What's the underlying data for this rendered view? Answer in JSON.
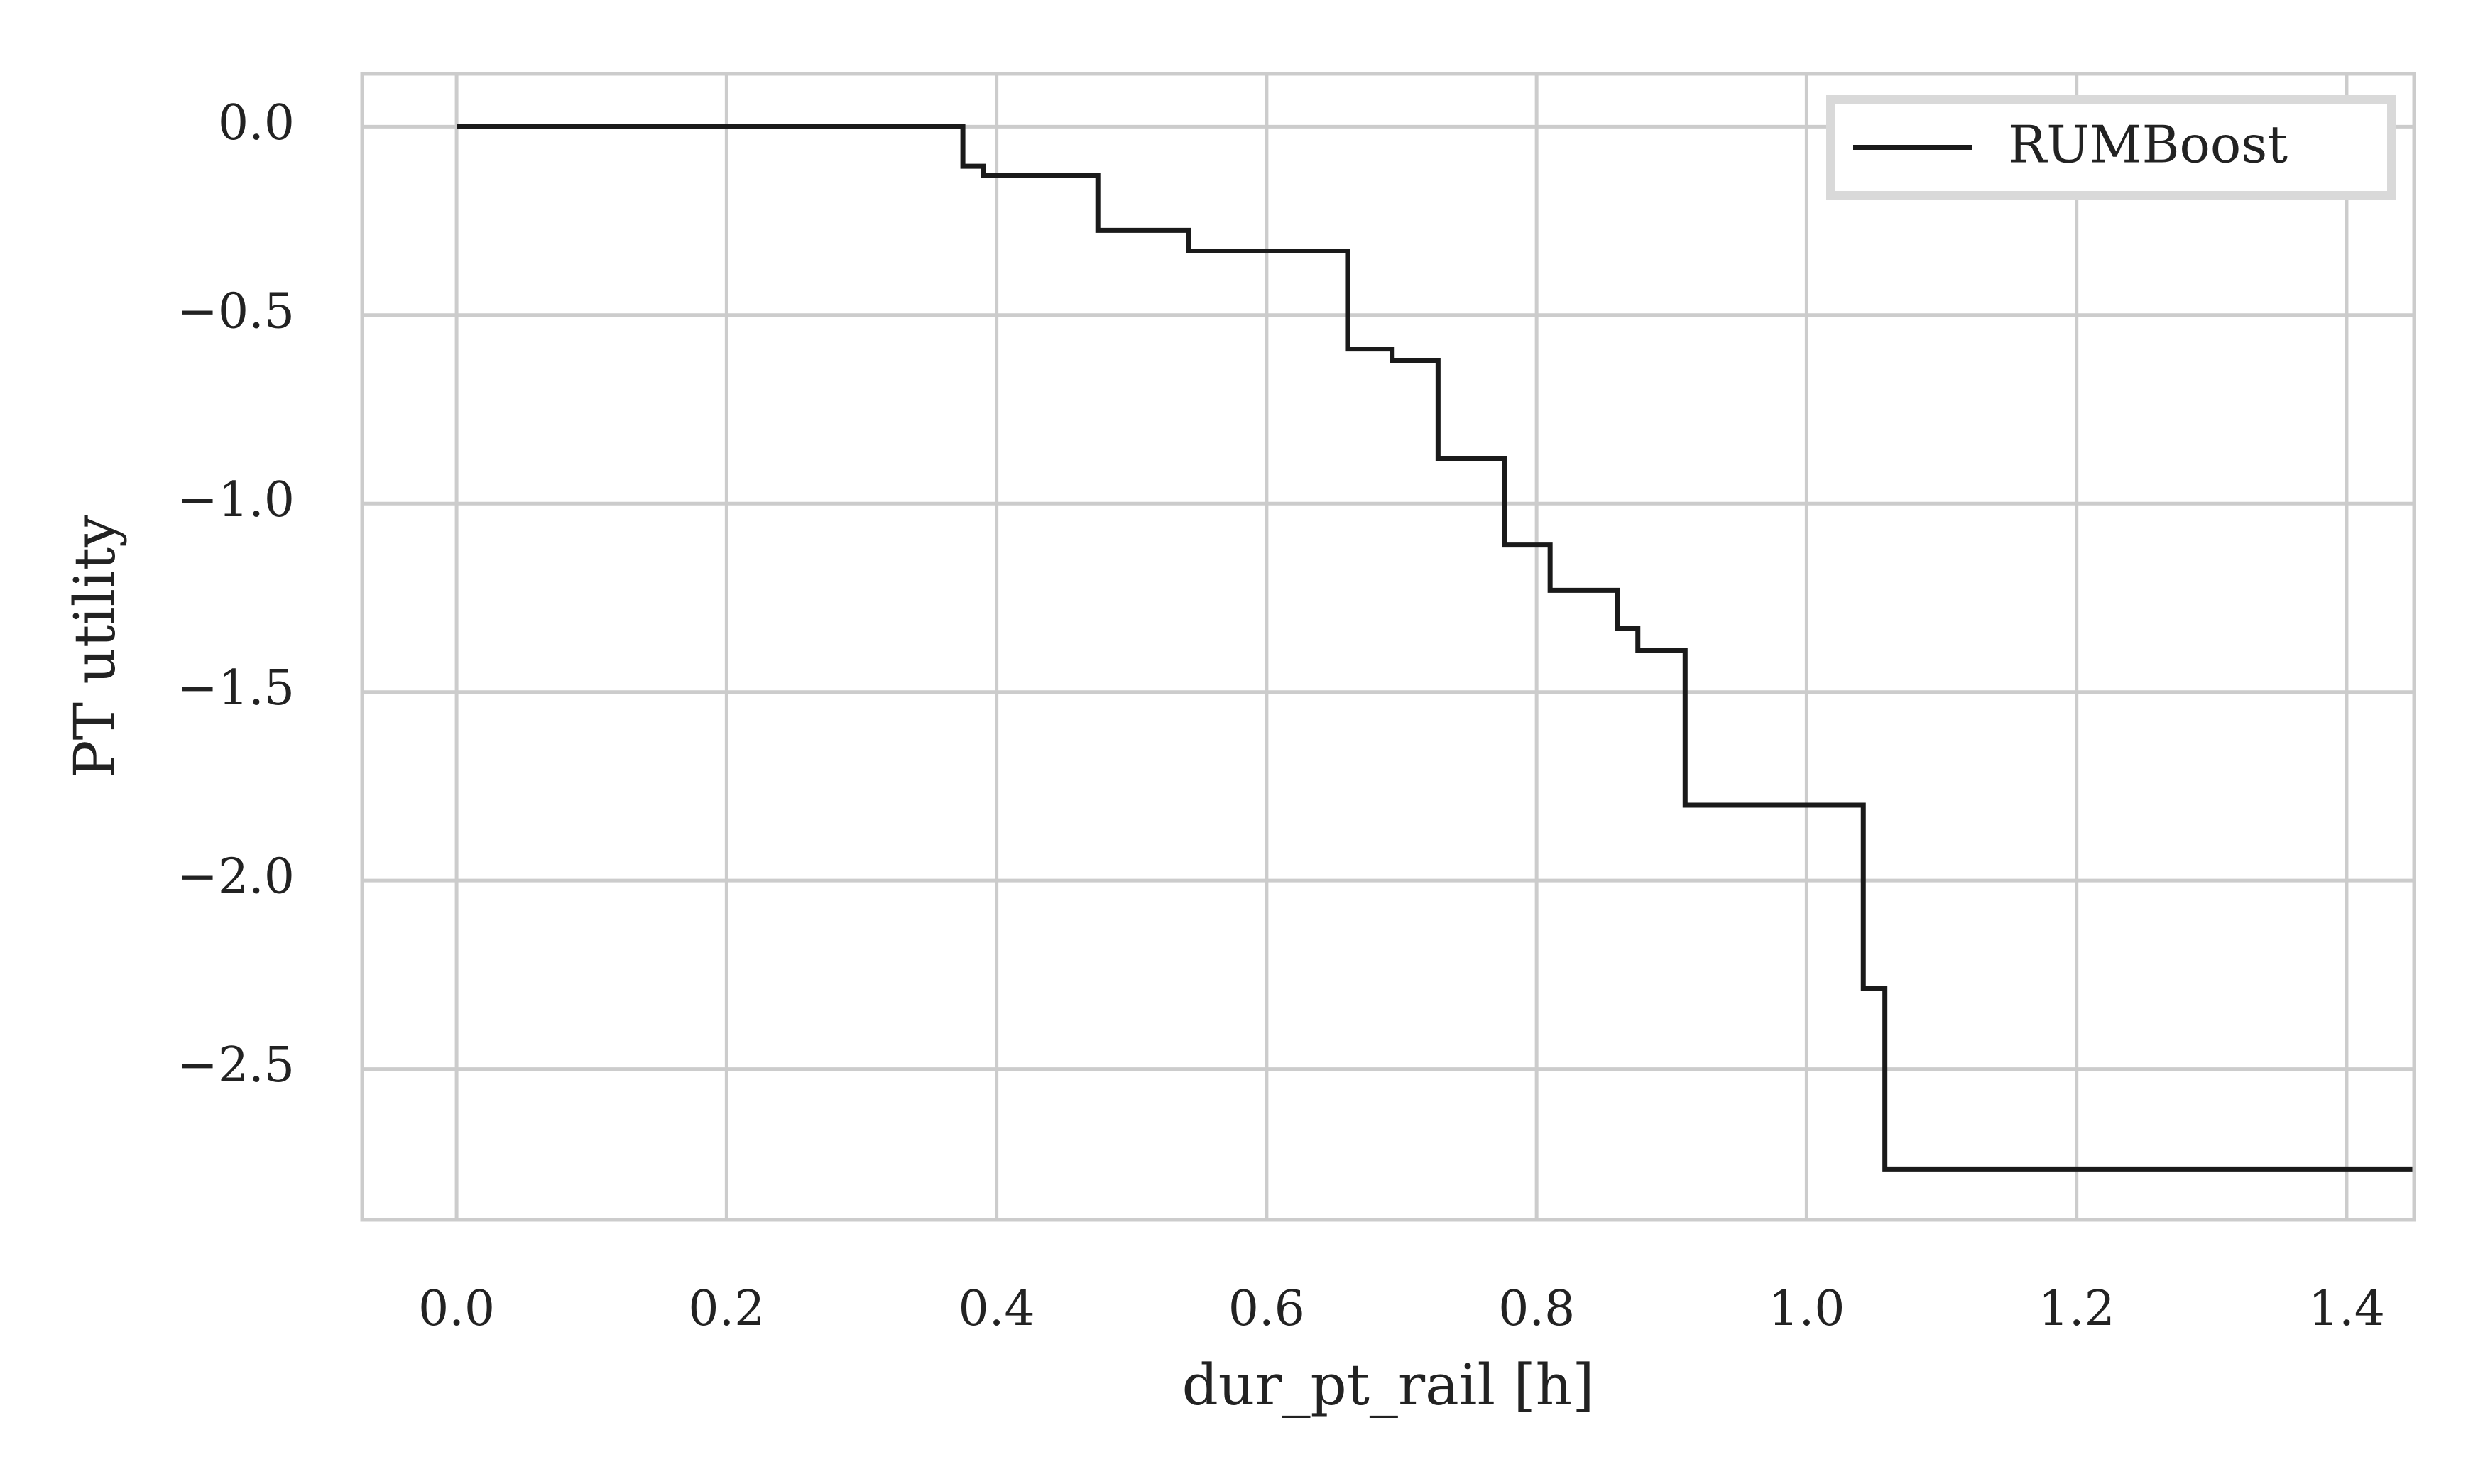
{
  "chart_data": {
    "type": "line",
    "step": true,
    "title": "",
    "xlabel": "dur_pt_rail [h]",
    "ylabel": "PT utility",
    "xlim": [
      -0.07,
      1.45
    ],
    "ylim": [
      -2.9,
      0.14
    ],
    "xticks": [
      0.0,
      0.2,
      0.4,
      0.6,
      0.8,
      1.0,
      1.2,
      1.4
    ],
    "xtick_labels": [
      "0.0",
      "0.2",
      "0.4",
      "0.6",
      "0.8",
      "1.0",
      "1.2",
      "1.4"
    ],
    "yticks": [
      0.0,
      -0.5,
      -1.0,
      -1.5,
      -2.0,
      -2.5
    ],
    "ytick_labels": [
      "0.0",
      "−0.5",
      "−1.0",
      "−1.5",
      "−2.0",
      "−2.5"
    ],
    "grid": true,
    "legend_position": "top-right",
    "colors": {
      "line": "#1a1a1a",
      "grid": "#cccccc",
      "legend_border": "#d9d9d9"
    },
    "series": [
      {
        "name": "RUMBoost",
        "x": [
          0.0,
          0.375,
          0.39,
          0.475,
          0.542,
          0.66,
          0.693,
          0.727,
          0.776,
          0.81,
          0.86,
          0.875,
          0.91,
          1.042,
          1.058,
          1.45
        ],
        "y": [
          0.0,
          -0.105,
          -0.13,
          -0.275,
          -0.33,
          -0.59,
          -0.62,
          -0.88,
          -1.11,
          -1.23,
          -1.33,
          -1.39,
          -1.8,
          -2.285,
          -2.765,
          -2.765
        ]
      }
    ]
  }
}
